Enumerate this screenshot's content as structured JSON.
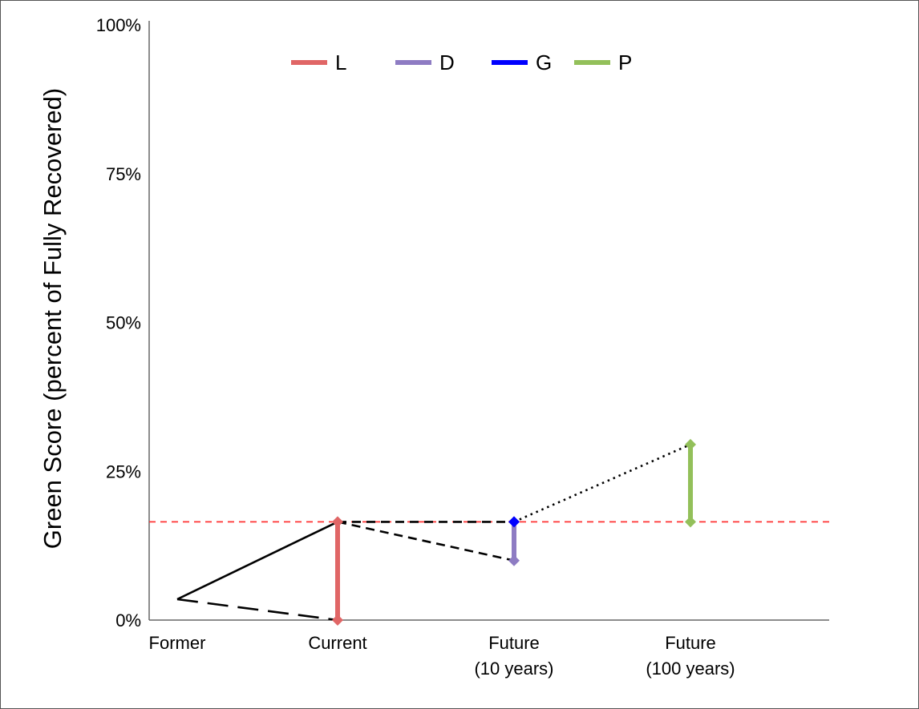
{
  "chart_data": {
    "type": "line",
    "ylabel": "Green Score (percent of Fully Recovered)",
    "ylim": [
      0,
      100
    ],
    "yticks": [
      0,
      25,
      50,
      75,
      100
    ],
    "ytick_labels": [
      "0%",
      "25%",
      "50%",
      "75%",
      "100%"
    ],
    "categories": [
      {
        "lines": [
          "Former"
        ]
      },
      {
        "lines": [
          "Current"
        ]
      },
      {
        "lines": [
          "Future",
          "(10 years)"
        ]
      },
      {
        "lines": [
          "Future",
          "(100 years)"
        ]
      }
    ],
    "legend_position": "top",
    "legend": [
      {
        "name": "L",
        "color": "#e06666"
      },
      {
        "name": "D",
        "color": "#8e7cc3"
      },
      {
        "name": "G",
        "color": "#0000ff"
      },
      {
        "name": "P",
        "color": "#93c05a"
      }
    ],
    "reference_line": {
      "y": 16.5,
      "color": "#ff3333",
      "style": "dashed"
    },
    "trajectories": [
      {
        "points": [
          [
            0,
            3.5
          ],
          [
            1,
            16.5
          ]
        ],
        "style": "solid"
      },
      {
        "points": [
          [
            0,
            3.5
          ],
          [
            1,
            0
          ]
        ],
        "style": "long-dash"
      },
      {
        "points": [
          [
            1,
            16.5
          ],
          [
            2,
            16.5
          ]
        ],
        "style": "dashed"
      },
      {
        "points": [
          [
            1,
            16.5
          ],
          [
            2,
            10
          ]
        ],
        "style": "dashed"
      },
      {
        "points": [
          [
            2,
            16.5
          ],
          [
            3,
            29.5
          ]
        ],
        "style": "dotted"
      }
    ],
    "ranges": [
      {
        "series": "L",
        "x": 1,
        "low": 0,
        "high": 16.5,
        "color": "#e06666"
      },
      {
        "series": "D",
        "x": 2,
        "low": 10,
        "high": 16.5,
        "color": "#8e7cc3"
      },
      {
        "series": "G",
        "x": 2,
        "low": 16.5,
        "high": 16.5,
        "color": "#0000ff"
      },
      {
        "series": "P",
        "x": 3,
        "low": 16.5,
        "high": 29.5,
        "color": "#93c05a"
      }
    ]
  }
}
